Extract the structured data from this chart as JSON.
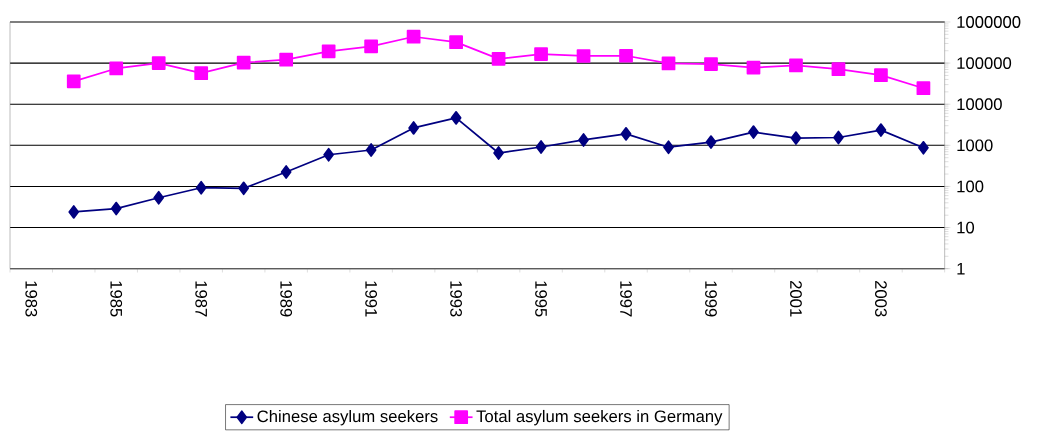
{
  "chart_data": {
    "type": "line",
    "categories": [
      "1983",
      null,
      "1985",
      null,
      "1987",
      null,
      "1989",
      null,
      "1991",
      null,
      "1993",
      null,
      "1995",
      null,
      "1997",
      null,
      "1999",
      null,
      "2001",
      null,
      "2003",
      null
    ],
    "series": [
      {
        "name": "Chinese asylum seekers",
        "color": "#000080",
        "marker": "diamond",
        "values": [
          null,
          24,
          29,
          53,
          93,
          90,
          225,
          590,
          770,
          2650,
          4650,
          650,
          910,
          1350,
          1900,
          900,
          1200,
          2100,
          1500,
          1550,
          2350,
          870
        ]
      },
      {
        "name": "Total asylum seekers in Germany",
        "color": "#ff00ff",
        "marker": "square",
        "values": [
          null,
          36000,
          74000,
          100000,
          57000,
          103000,
          121000,
          193000,
          256000,
          438000,
          323000,
          127000,
          166000,
          149000,
          151000,
          98000,
          95000,
          78000,
          88000,
          71000,
          51000,
          24500
        ]
      }
    ],
    "log": "y",
    "ylim": [
      1,
      1000000
    ],
    "yticks": [
      1,
      10,
      100,
      1000,
      10000,
      100000,
      1000000
    ],
    "grid": "y",
    "legend": "bottom"
  }
}
